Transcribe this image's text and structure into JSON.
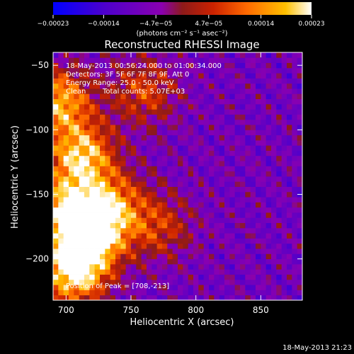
{
  "chart_data": {
    "type": "heatmap",
    "title": "Reconstructed RHESSI Image",
    "xlabel": "Heliocentric X (arcsec)",
    "ylabel": "Heliocentric Y (arcsec)",
    "xlim": [
      690,
      882
    ],
    "ylim": [
      -232,
      -40
    ],
    "xticks": [
      700,
      750,
      800,
      850
    ],
    "yticks": [
      -50,
      -100,
      -150,
      -200
    ],
    "ytick_labels": [
      "−50",
      "−100",
      "−150",
      "−200"
    ],
    "colorbar": {
      "range": [
        -0.00023,
        0.00023
      ],
      "ticks": [
        -0.00023,
        -0.00014,
        -4.7e-05,
        4.7e-05,
        0.00014,
        0.00023
      ],
      "tick_labels": [
        "−0.00023",
        "−0.00014",
        "−4.7e−05",
        "4.7e−05",
        "0.00014",
        "0.00023"
      ],
      "unit_label": "(photons cm⁻² s⁻¹ asec⁻²)",
      "colors": [
        "#0000ff",
        "#4d00cc",
        "#8a00b0",
        "#8c1a1a",
        "#cc2200",
        "#ff6a00",
        "#ffc000",
        "#ffffff"
      ]
    },
    "annotations": {
      "time_range": "18-May-2013 00:56:24.000 to 01:00:34.000",
      "detectors": "Detectors: 3F 5F 6F 7F 8F 9F, Att 0",
      "energy": "Energy Range: 25.0 - 50.0 keV",
      "clean": "Clean",
      "total_counts": "Total counts: 5.07E+03",
      "peak": "Position of Peak = [708,-213]"
    },
    "peak": [
      708,
      -213
    ],
    "sources": [
      {
        "x": 706,
        "y": -208,
        "peak": 1.0
      },
      {
        "x": 720,
        "y": -180,
        "peak": 0.85
      },
      {
        "x": 700,
        "y": -160,
        "peak": 0.7
      },
      {
        "x": 712,
        "y": -120,
        "peak": 0.8
      },
      {
        "x": 694,
        "y": -78,
        "peak": 0.75
      },
      {
        "x": 736,
        "y": -158,
        "peak": 0.55
      },
      {
        "x": 760,
        "y": -70,
        "peak": 0.45
      },
      {
        "x": 772,
        "y": -175,
        "peak": 0.4
      }
    ]
  },
  "footer": {
    "timestamp": "18-May-2013 21:23"
  }
}
